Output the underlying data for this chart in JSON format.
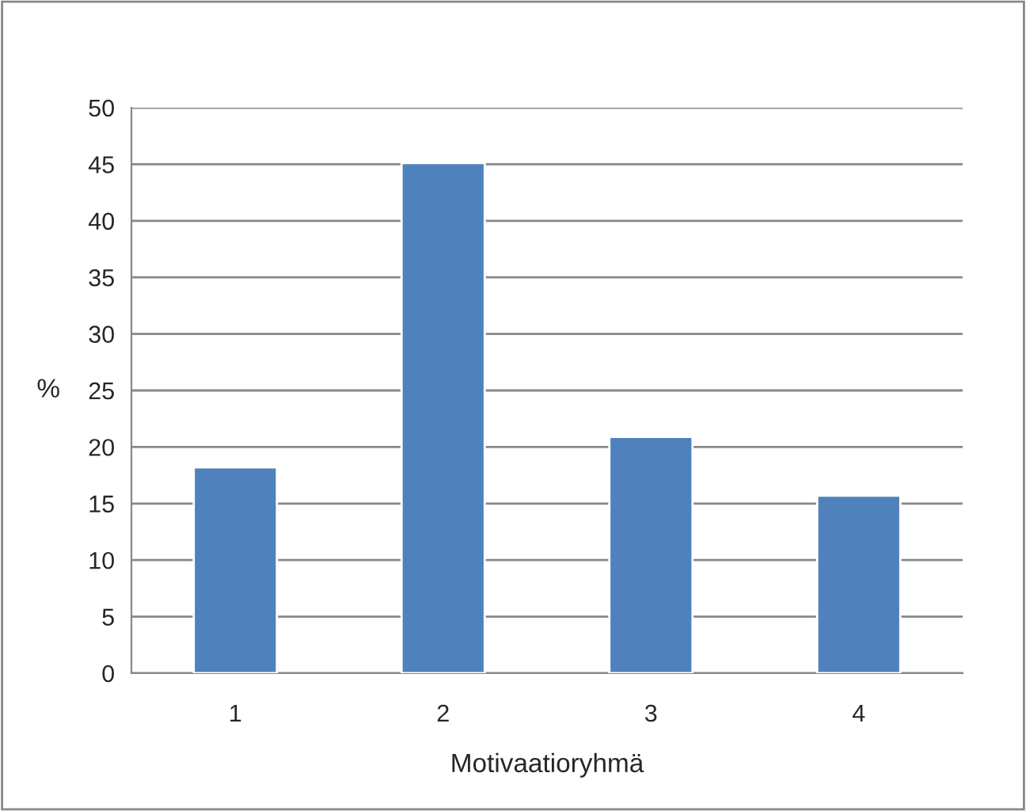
{
  "chart_data": {
    "type": "bar",
    "xlabel": "Motivaatioryhmä",
    "ylabel": "%",
    "categories": [
      "1",
      "2",
      "3",
      "4"
    ],
    "values": [
      18.2,
      45.1,
      20.9,
      15.7
    ],
    "color": "#4f81bd",
    "ylim": [
      0,
      50
    ],
    "yticks": [
      0,
      5,
      10,
      15,
      20,
      25,
      30,
      35,
      40,
      45,
      50
    ],
    "grid": "y"
  }
}
